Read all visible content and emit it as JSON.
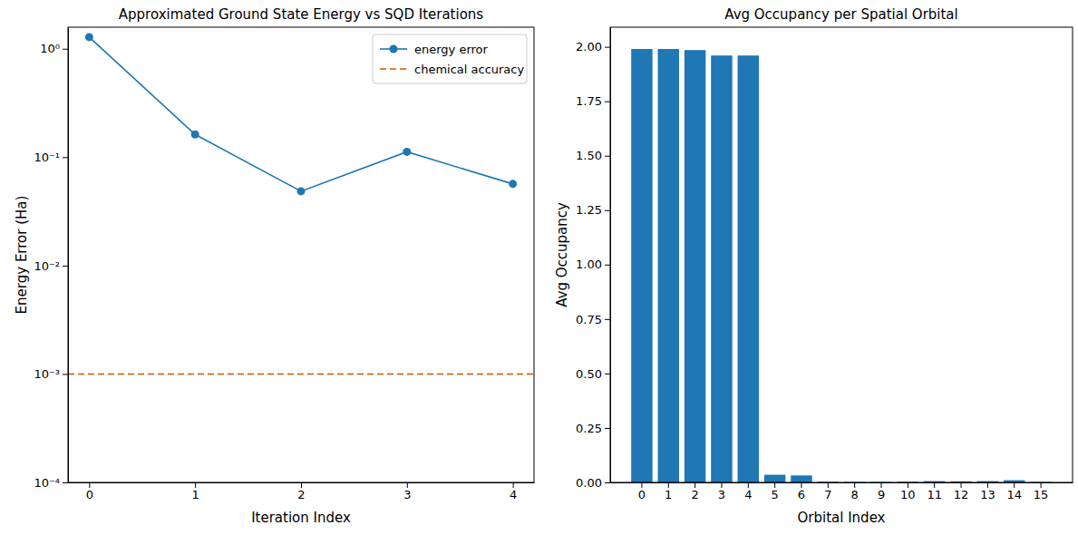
{
  "chart_data": [
    {
      "type": "line",
      "title": "Approximated Ground State Energy vs SQD Iterations",
      "x_label": "Iteration Index",
      "y_label": "Energy Error (Ha)",
      "log": "y",
      "grid": false,
      "legend": "upper right",
      "xlim": [
        -0.2,
        4.2
      ],
      "xticks": [
        0,
        1,
        2,
        3,
        4
      ],
      "ylim": [
        0.0001,
        1.58
      ],
      "yticks": [
        {
          "value": 0.0001,
          "label": "10⁻⁴"
        },
        {
          "value": 0.001,
          "label": "10⁻³"
        },
        {
          "value": 0.01,
          "label": "10⁻²"
        },
        {
          "value": 0.1,
          "label": "10⁻¹"
        },
        {
          "value": 1,
          "label": "10⁰"
        }
      ],
      "series": [
        {
          "name": "energy error",
          "color": "#1f77b4",
          "marker": "circle",
          "line_style": "solid",
          "x": [
            0,
            1,
            2,
            3,
            4
          ],
          "values": [
            1.28,
            0.162,
            0.0485,
            0.112,
            0.0566
          ]
        },
        {
          "name": "chemical accuracy",
          "color": "#cc5500",
          "marker": "none",
          "line_style": "dashed",
          "x": [
            -0.2,
            4.2
          ],
          "values": [
            0.001,
            0.001
          ]
        }
      ]
    },
    {
      "type": "bar",
      "title": "Avg Occupancy per Spatial Orbital",
      "x_label": "Orbital Index",
      "y_label": "Avg Occupancy",
      "grid": false,
      "color": "#1f77b4",
      "categories": [
        "0",
        "1",
        "2",
        "3",
        "4",
        "5",
        "6",
        "7",
        "8",
        "9",
        "10",
        "11",
        "12",
        "13",
        "14",
        "15"
      ],
      "values": [
        1.99,
        1.99,
        1.985,
        1.96,
        1.96,
        0.035,
        0.032,
        0.003,
        0.002,
        0.002,
        0.003,
        0.006,
        0.005,
        0.006,
        0.01,
        0.002
      ],
      "ylim": [
        0,
        2.09
      ],
      "yticks": [
        {
          "value": 0,
          "label": "0.00"
        },
        {
          "value": 0.25,
          "label": "0.25"
        },
        {
          "value": 0.5,
          "label": "0.50"
        },
        {
          "value": 0.75,
          "label": "0.75"
        },
        {
          "value": 1,
          "label": "1.00"
        },
        {
          "value": 1.25,
          "label": "1.25"
        },
        {
          "value": 1.5,
          "label": "1.50"
        },
        {
          "value": 1.75,
          "label": "1.75"
        },
        {
          "value": 2,
          "label": "2.00"
        }
      ]
    }
  ]
}
